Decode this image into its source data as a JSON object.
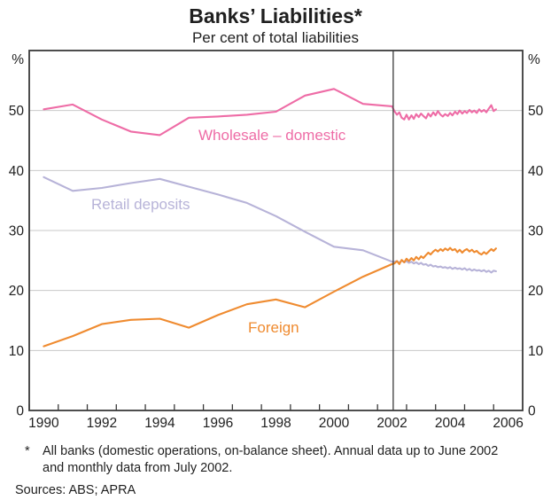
{
  "header": {
    "title": "Banks’ Liabilities*",
    "subtitle": "Per cent of total liabilities"
  },
  "chart_data": {
    "type": "line",
    "title": "Banks’ Liabilities*",
    "subtitle": "Per cent of total liabilities",
    "y_axis_unit_left": "%",
    "y_axis_unit_right": "%",
    "ylim": [
      0,
      60
    ],
    "y_ticks": [
      0,
      10,
      20,
      30,
      40,
      50
    ],
    "xlim": [
      1990,
      2007
    ],
    "x_minor_tick_years": [
      1990,
      1991,
      1992,
      1993,
      1994,
      1995,
      1996,
      1997,
      1998,
      1999,
      2000,
      2001,
      2002,
      2003,
      2004,
      2005,
      2006
    ],
    "x_tick_labels": [
      {
        "label": "1990",
        "center_year": 1990.5
      },
      {
        "label": "1992",
        "center_year": 1992.5
      },
      {
        "label": "1994",
        "center_year": 1994.5
      },
      {
        "label": "1996",
        "center_year": 1996.5
      },
      {
        "label": "1998",
        "center_year": 1998.5
      },
      {
        "label": "2000",
        "center_year": 2000.5
      },
      {
        "label": "2002",
        "center_year": 2002.5
      },
      {
        "label": "2004",
        "center_year": 2004.5
      },
      {
        "label": "2006",
        "center_year": 2006.5
      }
    ],
    "grid": true,
    "divider_year": 2002.54,
    "colors": {
      "grid": "#c9c9c9",
      "frame": "#3a3a3a",
      "divider": "#3a3a3a",
      "text": "#1f1f1f"
    },
    "series": [
      {
        "name": "wholesale-domestic",
        "label": "Wholesale – domestic",
        "color": "#ee6ca6",
        "points": [
          [
            1990.5,
            50.2
          ],
          [
            1991.5,
            51.0
          ],
          [
            1992.5,
            48.5
          ],
          [
            1993.5,
            46.5
          ],
          [
            1994.5,
            45.9
          ],
          [
            1995.5,
            48.8
          ],
          [
            1996.5,
            49.0
          ],
          [
            1997.5,
            49.3
          ],
          [
            1998.5,
            49.8
          ],
          [
            1999.5,
            52.5
          ],
          [
            2000.5,
            53.6
          ],
          [
            2001.5,
            51.1
          ],
          [
            2002.5,
            50.7
          ],
          [
            2002.58,
            49.9
          ],
          [
            2002.67,
            49.3
          ],
          [
            2002.75,
            49.7
          ],
          [
            2002.83,
            48.8
          ],
          [
            2002.92,
            48.5
          ],
          [
            2003.0,
            49.3
          ],
          [
            2003.08,
            48.5
          ],
          [
            2003.17,
            49.2
          ],
          [
            2003.25,
            48.6
          ],
          [
            2003.33,
            49.4
          ],
          [
            2003.42,
            48.9
          ],
          [
            2003.5,
            49.5
          ],
          [
            2003.58,
            49.1
          ],
          [
            2003.67,
            48.7
          ],
          [
            2003.75,
            49.5
          ],
          [
            2003.83,
            49.0
          ],
          [
            2003.92,
            49.7
          ],
          [
            2004.0,
            49.2
          ],
          [
            2004.08,
            49.9
          ],
          [
            2004.17,
            49.3
          ],
          [
            2004.25,
            49.0
          ],
          [
            2004.33,
            49.4
          ],
          [
            2004.42,
            49.1
          ],
          [
            2004.5,
            49.6
          ],
          [
            2004.58,
            49.2
          ],
          [
            2004.67,
            49.8
          ],
          [
            2004.75,
            49.4
          ],
          [
            2004.83,
            50.0
          ],
          [
            2004.92,
            49.5
          ],
          [
            2005.0,
            49.9
          ],
          [
            2005.08,
            49.6
          ],
          [
            2005.17,
            50.1
          ],
          [
            2005.25,
            49.7
          ],
          [
            2005.33,
            50.0
          ],
          [
            2005.42,
            49.6
          ],
          [
            2005.5,
            50.2
          ],
          [
            2005.58,
            49.8
          ],
          [
            2005.67,
            50.1
          ],
          [
            2005.75,
            49.7
          ],
          [
            2005.83,
            50.3
          ],
          [
            2005.92,
            50.9
          ],
          [
            2006.0,
            49.9
          ],
          [
            2006.08,
            50.2
          ]
        ]
      },
      {
        "name": "retail-deposits",
        "label": "Retail deposits",
        "color": "#b7b3d8",
        "points": [
          [
            1990.5,
            38.9
          ],
          [
            1991.5,
            36.6
          ],
          [
            1992.5,
            37.1
          ],
          [
            1993.5,
            37.9
          ],
          [
            1994.5,
            38.6
          ],
          [
            1995.5,
            37.3
          ],
          [
            1996.5,
            36.0
          ],
          [
            1997.5,
            34.6
          ],
          [
            1998.5,
            32.4
          ],
          [
            1999.5,
            29.8
          ],
          [
            2000.5,
            27.3
          ],
          [
            2001.5,
            26.7
          ],
          [
            2002.5,
            24.8
          ],
          [
            2002.58,
            24.8
          ],
          [
            2002.67,
            24.9
          ],
          [
            2002.75,
            24.6
          ],
          [
            2002.83,
            25.0
          ],
          [
            2002.92,
            24.7
          ],
          [
            2003.0,
            24.9
          ],
          [
            2003.08,
            24.6
          ],
          [
            2003.17,
            24.8
          ],
          [
            2003.25,
            24.5
          ],
          [
            2003.33,
            24.7
          ],
          [
            2003.42,
            24.4
          ],
          [
            2003.5,
            24.6
          ],
          [
            2003.58,
            24.3
          ],
          [
            2003.67,
            24.4
          ],
          [
            2003.75,
            24.1
          ],
          [
            2003.83,
            24.3
          ],
          [
            2003.92,
            24.0
          ],
          [
            2004.0,
            24.1
          ],
          [
            2004.08,
            23.9
          ],
          [
            2004.17,
            24.0
          ],
          [
            2004.25,
            23.8
          ],
          [
            2004.33,
            23.9
          ],
          [
            2004.42,
            23.7
          ],
          [
            2004.5,
            23.9
          ],
          [
            2004.58,
            23.6
          ],
          [
            2004.67,
            23.8
          ],
          [
            2004.75,
            23.6
          ],
          [
            2004.83,
            23.7
          ],
          [
            2004.92,
            23.5
          ],
          [
            2005.0,
            23.7
          ],
          [
            2005.08,
            23.4
          ],
          [
            2005.17,
            23.6
          ],
          [
            2005.25,
            23.3
          ],
          [
            2005.33,
            23.5
          ],
          [
            2005.42,
            23.3
          ],
          [
            2005.5,
            23.4
          ],
          [
            2005.58,
            23.2
          ],
          [
            2005.67,
            23.4
          ],
          [
            2005.75,
            23.1
          ],
          [
            2005.83,
            23.3
          ],
          [
            2005.92,
            23.0
          ],
          [
            2006.0,
            23.3
          ],
          [
            2006.08,
            23.2
          ]
        ]
      },
      {
        "name": "foreign",
        "label": "Foreign",
        "color": "#ef8b30",
        "points": [
          [
            1990.5,
            10.7
          ],
          [
            1991.5,
            12.4
          ],
          [
            1992.5,
            14.4
          ],
          [
            1993.5,
            15.1
          ],
          [
            1994.5,
            15.3
          ],
          [
            1995.5,
            13.8
          ],
          [
            1996.5,
            15.9
          ],
          [
            1997.5,
            17.7
          ],
          [
            1998.5,
            18.5
          ],
          [
            1999.5,
            17.2
          ],
          [
            2000.5,
            19.8
          ],
          [
            2001.5,
            22.3
          ],
          [
            2002.5,
            24.4
          ],
          [
            2002.58,
            24.5
          ],
          [
            2002.67,
            24.9
          ],
          [
            2002.75,
            24.4
          ],
          [
            2002.83,
            25.1
          ],
          [
            2002.92,
            24.7
          ],
          [
            2003.0,
            25.3
          ],
          [
            2003.08,
            24.9
          ],
          [
            2003.17,
            25.4
          ],
          [
            2003.25,
            25.0
          ],
          [
            2003.33,
            25.6
          ],
          [
            2003.42,
            25.2
          ],
          [
            2003.5,
            25.7
          ],
          [
            2003.58,
            25.4
          ],
          [
            2003.67,
            25.9
          ],
          [
            2003.75,
            26.3
          ],
          [
            2003.83,
            26.0
          ],
          [
            2003.92,
            26.5
          ],
          [
            2004.0,
            26.8
          ],
          [
            2004.08,
            26.5
          ],
          [
            2004.17,
            26.9
          ],
          [
            2004.25,
            26.6
          ],
          [
            2004.33,
            27.0
          ],
          [
            2004.42,
            26.7
          ],
          [
            2004.5,
            27.1
          ],
          [
            2004.58,
            26.7
          ],
          [
            2004.67,
            26.9
          ],
          [
            2004.75,
            26.4
          ],
          [
            2004.83,
            26.8
          ],
          [
            2004.92,
            26.3
          ],
          [
            2005.0,
            26.7
          ],
          [
            2005.08,
            26.9
          ],
          [
            2005.17,
            26.5
          ],
          [
            2005.25,
            26.8
          ],
          [
            2005.33,
            26.4
          ],
          [
            2005.42,
            26.6
          ],
          [
            2005.5,
            26.2
          ],
          [
            2005.58,
            26.0
          ],
          [
            2005.67,
            26.4
          ],
          [
            2005.75,
            26.1
          ],
          [
            2005.83,
            26.5
          ],
          [
            2005.92,
            26.9
          ],
          [
            2006.0,
            26.6
          ],
          [
            2006.08,
            27.0
          ]
        ]
      }
    ]
  },
  "footnote": {
    "marker": "*",
    "text": "All banks (domestic operations, on-balance sheet). Annual data up to June 2002 and monthly data from July 2002."
  },
  "sources": "Sources: ABS; APRA"
}
